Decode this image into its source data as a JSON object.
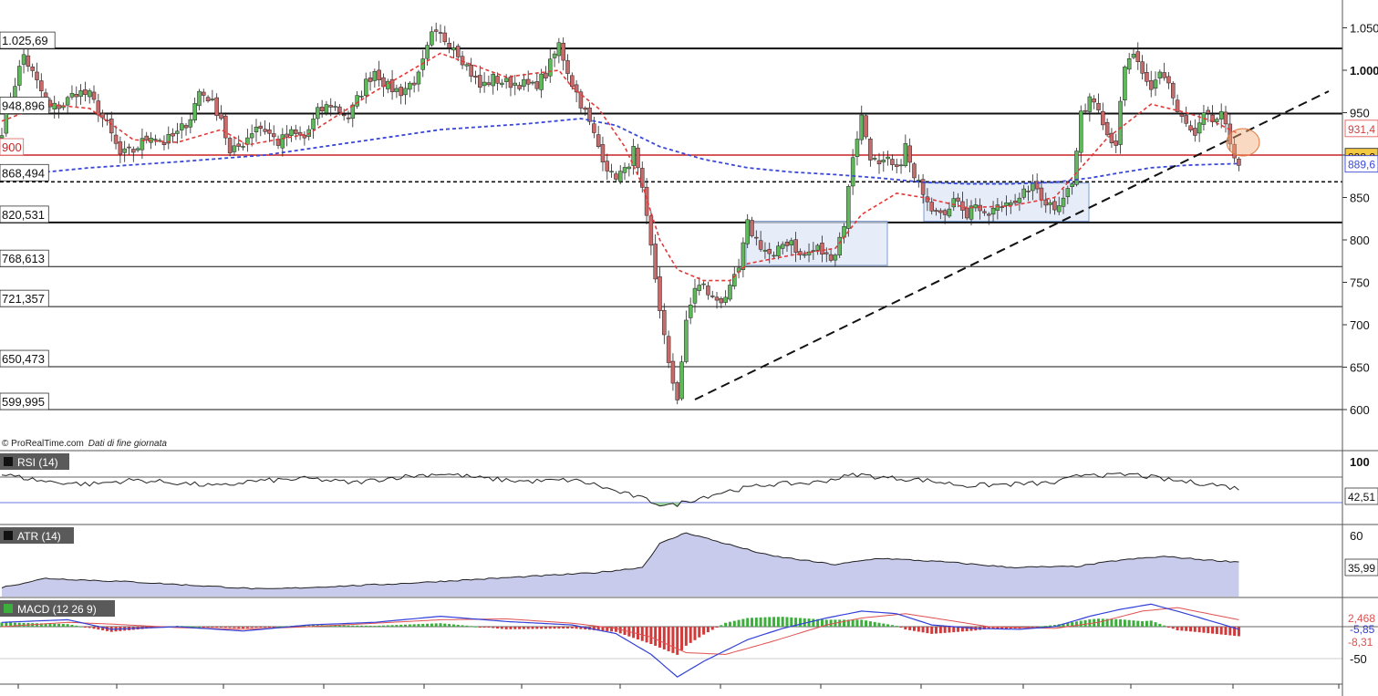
{
  "credit": {
    "source": "© ProRealTime.com",
    "note": "Dati di fine giornata"
  },
  "colors": {
    "up": "#5fb85a",
    "down": "#c96a6a",
    "ema20": "#e03a3a",
    "ema100": "#3a48d8",
    "support": "#cc2222",
    "box_fill": "#dde6f5",
    "box_stroke": "#7d9bd0",
    "atr_fill": "#c9cbec",
    "macd_line": "#3340d8",
    "macd_signal": "#e05050"
  },
  "chart_data": [
    {
      "type": "candlestick",
      "ylim": [
        578,
        1057
      ],
      "y_ticks": [
        "1.050",
        "1.000",
        "950",
        "900",
        "850",
        "800",
        "750",
        "700",
        "650",
        "600"
      ],
      "y_tick_values": [
        1050,
        1000,
        950,
        900,
        850,
        800,
        750,
        700,
        650,
        600
      ],
      "level_labels": [
        "1.025,69",
        "948,896",
        "900",
        "868,494",
        "820,531",
        "768,613",
        "721,357",
        "650,473",
        "599,995"
      ],
      "level_values": [
        1025.69,
        948.896,
        900,
        868.494,
        820.531,
        768.613,
        721.357,
        650.473,
        599.995
      ],
      "price_tags": [
        "931,4",
        "898,2",
        "889,6"
      ],
      "price_tag_values": [
        931.4,
        898.2,
        889.6
      ],
      "anchors": [
        [
          0,
          930
        ],
        [
          3,
          985
        ],
        [
          5,
          1018
        ],
        [
          8,
          985
        ],
        [
          11,
          955
        ],
        [
          14,
          960
        ],
        [
          17,
          975
        ],
        [
          20,
          970
        ],
        [
          24,
          935
        ],
        [
          27,
          900
        ],
        [
          30,
          905
        ],
        [
          34,
          925
        ],
        [
          37,
          915
        ],
        [
          40,
          925
        ],
        [
          43,
          945
        ],
        [
          45,
          975
        ],
        [
          47,
          968
        ],
        [
          50,
          945
        ],
        [
          52,
          900
        ],
        [
          55,
          915
        ],
        [
          58,
          935
        ],
        [
          60,
          930
        ],
        [
          63,
          915
        ],
        [
          66,
          925
        ],
        [
          69,
          920
        ],
        [
          72,
          950
        ],
        [
          75,
          960
        ],
        [
          79,
          945
        ],
        [
          83,
          985
        ],
        [
          85,
          1000
        ],
        [
          88,
          980
        ],
        [
          91,
          975
        ],
        [
          95,
          992
        ],
        [
          98,
          1040
        ],
        [
          100,
          1040
        ],
        [
          103,
          1030
        ],
        [
          106,
          1005
        ],
        [
          109,
          980
        ],
        [
          112,
          990
        ],
        [
          115,
          985
        ],
        [
          118,
          985
        ],
        [
          121,
          980
        ],
        [
          124,
          995
        ],
        [
          127,
          1030
        ],
        [
          130,
          985
        ],
        [
          133,
          950
        ],
        [
          136,
          910
        ],
        [
          139,
          875
        ],
        [
          142,
          880
        ],
        [
          144,
          905
        ],
        [
          146,
          855
        ],
        [
          148,
          790
        ],
        [
          150,
          720
        ],
        [
          152,
          650
        ],
        [
          154,
          615
        ],
        [
          156,
          700
        ],
        [
          158,
          745
        ],
        [
          160,
          745
        ],
        [
          162,
          730
        ],
        [
          164,
          730
        ],
        [
          166,
          740
        ],
        [
          168,
          765
        ],
        [
          170,
          818
        ],
        [
          172,
          800
        ],
        [
          174,
          788
        ],
        [
          176,
          778
        ],
        [
          178,
          795
        ],
        [
          180,
          800
        ],
        [
          182,
          780
        ],
        [
          184,
          785
        ],
        [
          186,
          790
        ],
        [
          188,
          780
        ],
        [
          190,
          785
        ],
        [
          192,
          820
        ],
        [
          194,
          900
        ],
        [
          196,
          945
        ],
        [
          198,
          900
        ],
        [
          200,
          885
        ],
        [
          202,
          892
        ],
        [
          204,
          880
        ],
        [
          206,
          910
        ],
        [
          208,
          870
        ],
        [
          210,
          860
        ],
        [
          212,
          840
        ],
        [
          214,
          838
        ],
        [
          216,
          835
        ],
        [
          218,
          850
        ],
        [
          220,
          830
        ],
        [
          222,
          845
        ],
        [
          224,
          825
        ],
        [
          226,
          835
        ],
        [
          228,
          840
        ],
        [
          230,
          850
        ],
        [
          232,
          845
        ],
        [
          234,
          862
        ],
        [
          236,
          860
        ],
        [
          238,
          845
        ],
        [
          240,
          840
        ],
        [
          244,
          865
        ],
        [
          246,
          945
        ],
        [
          248,
          970
        ],
        [
          250,
          960
        ],
        [
          252,
          925
        ],
        [
          254,
          915
        ],
        [
          256,
          1000
        ],
        [
          258,
          1020
        ],
        [
          260,
          990
        ],
        [
          262,
          975
        ],
        [
          264,
          1000
        ],
        [
          266,
          985
        ],
        [
          268,
          950
        ],
        [
          270,
          935
        ],
        [
          272,
          920
        ],
        [
          274,
          945
        ],
        [
          276,
          940
        ],
        [
          278,
          945
        ],
        [
          280,
          915
        ],
        [
          282,
          890
        ]
      ],
      "ema20_anchors": [
        [
          0,
          940
        ],
        [
          10,
          960
        ],
        [
          20,
          955
        ],
        [
          30,
          918
        ],
        [
          40,
          915
        ],
        [
          50,
          930
        ],
        [
          56,
          912
        ],
        [
          70,
          925
        ],
        [
          85,
          975
        ],
        [
          100,
          1020
        ],
        [
          115,
          992
        ],
        [
          127,
          1000
        ],
        [
          130,
          980
        ],
        [
          136,
          955
        ],
        [
          142,
          910
        ],
        [
          146,
          865
        ],
        [
          150,
          800
        ],
        [
          154,
          765
        ],
        [
          160,
          752
        ],
        [
          166,
          752
        ],
        [
          170,
          772
        ],
        [
          180,
          782
        ],
        [
          190,
          790
        ],
        [
          196,
          830
        ],
        [
          204,
          855
        ],
        [
          210,
          850
        ],
        [
          220,
          838
        ],
        [
          230,
          840
        ],
        [
          240,
          850
        ],
        [
          246,
          885
        ],
        [
          252,
          920
        ],
        [
          262,
          960
        ],
        [
          270,
          950
        ],
        [
          276,
          940
        ],
        [
          282,
          925
        ]
      ],
      "ema100_anchors": [
        [
          0,
          875
        ],
        [
          20,
          885
        ],
        [
          40,
          892
        ],
        [
          60,
          900
        ],
        [
          80,
          915
        ],
        [
          100,
          930
        ],
        [
          120,
          937
        ],
        [
          132,
          943
        ],
        [
          140,
          935
        ],
        [
          150,
          910
        ],
        [
          160,
          895
        ],
        [
          170,
          885
        ],
        [
          180,
          880
        ],
        [
          190,
          877
        ],
        [
          200,
          873
        ],
        [
          210,
          868
        ],
        [
          220,
          866
        ],
        [
          230,
          866
        ],
        [
          240,
          868
        ],
        [
          248,
          873
        ],
        [
          256,
          880
        ],
        [
          262,
          885
        ],
        [
          270,
          888
        ],
        [
          282,
          890
        ]
      ]
    },
    {
      "type": "line",
      "title": "RSI (14)",
      "ylim": [
        27,
        78
      ],
      "y_ticks": [
        "100"
      ],
      "value_tag": "42,51"
    },
    {
      "type": "area",
      "title": "ATR (14)",
      "ylim": [
        0,
        68
      ],
      "y_ticks": [
        "60"
      ],
      "value_tag": "35,99"
    },
    {
      "type": "bar",
      "title": "MACD (12 26 9)",
      "ylim": [
        -62,
        42
      ],
      "y_ticks": [
        "-50"
      ],
      "value_tags": [
        "2,468",
        "-5,85",
        "-8,31"
      ]
    }
  ]
}
